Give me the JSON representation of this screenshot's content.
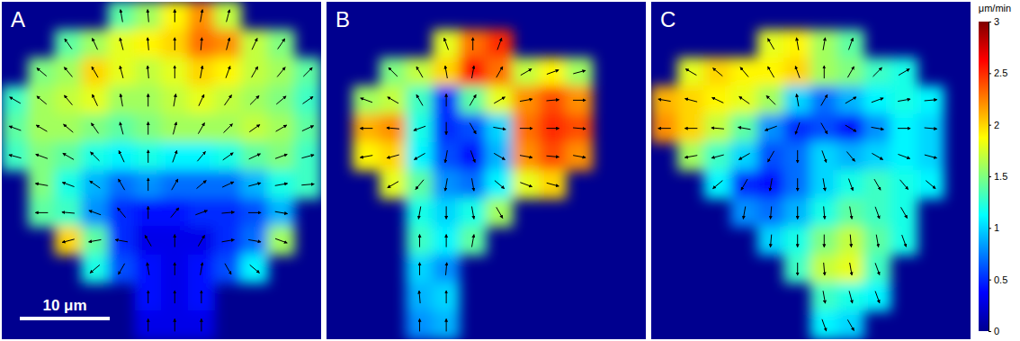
{
  "chart_data": [
    {
      "type": "heatmap",
      "title": "A",
      "xlim": [
        0,
        35.5
      ],
      "ylim": [
        0,
        37.5
      ],
      "tick_labels": false,
      "scale_bar": {
        "label": "10 μm",
        "length": 10
      },
      "values": [
        [
          null,
          null,
          null,
          null,
          1.4,
          1.6,
          1.9,
          2.2,
          1.7,
          null,
          null,
          null
        ],
        [
          null,
          null,
          1.4,
          1.6,
          1.8,
          1.9,
          2.0,
          2.3,
          2.2,
          1.7,
          1.5,
          null
        ],
        [
          null,
          1.5,
          1.6,
          2.0,
          1.8,
          1.7,
          1.8,
          2.0,
          1.9,
          1.7,
          1.6,
          1.4
        ],
        [
          1.3,
          1.6,
          1.7,
          1.8,
          1.6,
          1.6,
          1.7,
          1.8,
          1.7,
          1.6,
          1.5,
          1.3
        ],
        [
          1.4,
          1.6,
          1.6,
          1.5,
          1.4,
          1.5,
          1.6,
          1.6,
          1.6,
          1.7,
          1.6,
          1.4
        ],
        [
          1.3,
          1.5,
          1.4,
          1.2,
          1.1,
          1.2,
          1.1,
          1.1,
          1.2,
          1.4,
          1.5,
          1.3
        ],
        [
          null,
          1.5,
          1.2,
          0.9,
          0.7,
          0.8,
          0.7,
          0.7,
          0.7,
          0.9,
          1.2,
          1.3
        ],
        [
          null,
          1.4,
          1.3,
          0.8,
          0.5,
          0.4,
          0.4,
          0.5,
          0.5,
          0.6,
          0.9,
          null
        ],
        [
          null,
          null,
          2.0,
          1.4,
          0.5,
          0.3,
          0.3,
          0.3,
          0.5,
          0.7,
          1.6,
          null
        ],
        [
          null,
          null,
          null,
          1.2,
          0.6,
          0.4,
          0.3,
          0.4,
          0.6,
          1.1,
          null,
          null
        ],
        [
          null,
          null,
          null,
          null,
          null,
          0.4,
          0.3,
          0.4,
          null,
          null,
          null,
          null
        ],
        [
          null,
          null,
          null,
          null,
          null,
          0.3,
          0.3,
          0.3,
          null,
          null,
          null,
          null
        ]
      ],
      "directions": [
        [
          null,
          null,
          null,
          null,
          100,
          95,
          90,
          80,
          75,
          null,
          null,
          null
        ],
        [
          null,
          null,
          125,
          115,
          105,
          95,
          90,
          85,
          75,
          65,
          55,
          null
        ],
        [
          null,
          140,
          130,
          120,
          105,
          95,
          90,
          80,
          70,
          60,
          50,
          45
        ],
        [
          150,
          140,
          130,
          115,
          100,
          90,
          80,
          65,
          55,
          45,
          40,
          35
        ],
        [
          160,
          150,
          140,
          125,
          105,
          90,
          75,
          60,
          45,
          35,
          30,
          25
        ],
        [
          165,
          160,
          150,
          135,
          115,
          90,
          70,
          50,
          35,
          25,
          20,
          15
        ],
        [
          null,
          170,
          160,
          145,
          120,
          90,
          60,
          40,
          25,
          15,
          10,
          5
        ],
        [
          null,
          180,
          175,
          160,
          130,
          90,
          50,
          20,
          5,
          0,
          350,
          null
        ],
        [
          null,
          null,
          195,
          190,
          170,
          120,
          90,
          60,
          10,
          350,
          340,
          null
        ],
        [
          null,
          null,
          null,
          220,
          240,
          100,
          90,
          80,
          300,
          320,
          null,
          null
        ],
        [
          null,
          null,
          null,
          null,
          null,
          90,
          90,
          90,
          null,
          null,
          null,
          null
        ],
        [
          null,
          null,
          null,
          null,
          null,
          90,
          90,
          90,
          null,
          null,
          null,
          null
        ]
      ]
    },
    {
      "type": "heatmap",
      "title": "B",
      "xlim": [
        0,
        35.5
      ],
      "ylim": [
        0,
        37.5
      ],
      "tick_labels": false,
      "values": [
        [
          null,
          null,
          null,
          null,
          null,
          null,
          null,
          null,
          null,
          null,
          null,
          null
        ],
        [
          null,
          null,
          null,
          null,
          1.8,
          2.3,
          2.5,
          null,
          null,
          null,
          null,
          null
        ],
        [
          null,
          null,
          1.5,
          1.7,
          2.0,
          2.6,
          2.3,
          1.7,
          1.9,
          1.6,
          null,
          null
        ],
        [
          null,
          1.6,
          1.7,
          1.3,
          0.5,
          1.4,
          1.8,
          2.2,
          2.4,
          2.2,
          null,
          null
        ],
        [
          null,
          2.1,
          2.2,
          1.2,
          0.5,
          0.6,
          1.0,
          2.3,
          2.5,
          2.4,
          null,
          null
        ],
        [
          null,
          1.9,
          2.0,
          1.1,
          0.6,
          0.4,
          0.9,
          2.2,
          2.4,
          2.2,
          null,
          null
        ],
        [
          null,
          null,
          1.8,
          1.4,
          0.8,
          0.7,
          1.1,
          1.8,
          2.0,
          null,
          null,
          null
        ],
        [
          null,
          null,
          null,
          1.2,
          1.0,
          1.2,
          1.6,
          null,
          null,
          null,
          null,
          null
        ],
        [
          null,
          null,
          null,
          1.3,
          1.1,
          1.4,
          null,
          null,
          null,
          null,
          null,
          null
        ],
        [
          null,
          null,
          null,
          1.0,
          0.8,
          null,
          null,
          null,
          null,
          null,
          null,
          null
        ],
        [
          null,
          null,
          null,
          0.9,
          1.0,
          null,
          null,
          null,
          null,
          null,
          null,
          null
        ],
        [
          null,
          null,
          null,
          0.8,
          0.9,
          null,
          null,
          null,
          null,
          null,
          null,
          null
        ]
      ],
      "directions": [
        [
          null,
          null,
          null,
          null,
          null,
          null,
          null,
          null,
          null,
          null,
          null,
          null
        ],
        [
          null,
          null,
          null,
          null,
          110,
          90,
          70,
          null,
          null,
          null,
          null,
          null
        ],
        [
          null,
          null,
          135,
          120,
          100,
          80,
          60,
          30,
          20,
          15,
          null,
          null
        ],
        [
          null,
          160,
          150,
          120,
          90,
          60,
          30,
          10,
          5,
          0,
          null,
          null
        ],
        [
          null,
          180,
          175,
          200,
          270,
          300,
          350,
          0,
          0,
          355,
          null,
          null
        ],
        [
          null,
          190,
          195,
          210,
          260,
          290,
          330,
          350,
          355,
          350,
          null,
          null
        ],
        [
          null,
          null,
          210,
          230,
          260,
          280,
          320,
          340,
          345,
          null,
          null,
          null
        ],
        [
          null,
          null,
          null,
          260,
          270,
          280,
          300,
          null,
          null,
          null,
          null,
          null
        ],
        [
          null,
          null,
          null,
          90,
          90,
          80,
          null,
          null,
          null,
          null,
          null,
          null
        ],
        [
          null,
          null,
          null,
          90,
          85,
          null,
          null,
          null,
          null,
          null,
          null,
          null
        ],
        [
          null,
          null,
          null,
          95,
          90,
          null,
          null,
          null,
          null,
          null,
          null,
          null
        ],
        [
          null,
          null,
          null,
          90,
          90,
          null,
          null,
          null,
          null,
          null,
          null,
          null
        ]
      ]
    },
    {
      "type": "heatmap",
      "title": "C",
      "xlim": [
        0,
        35.5
      ],
      "ylim": [
        0,
        37.5
      ],
      "tick_labels": false,
      "colorbar": {
        "label": "μm/min",
        "range": [
          0,
          3
        ],
        "ticks": [
          0,
          0.5,
          1,
          1.5,
          2,
          2.5,
          3
        ]
      },
      "values": [
        [
          null,
          null,
          null,
          null,
          null,
          null,
          null,
          null,
          null,
          null,
          null,
          null
        ],
        [
          null,
          null,
          null,
          null,
          1.8,
          1.9,
          1.6,
          1.4,
          null,
          null,
          null,
          null
        ],
        [
          null,
          1.8,
          2.0,
          1.9,
          1.9,
          2.0,
          1.6,
          1.5,
          1.3,
          1.2,
          null,
          null
        ],
        [
          2.1,
          2.0,
          1.9,
          1.8,
          1.6,
          1.0,
          0.7,
          0.9,
          1.1,
          1.2,
          1.1,
          null
        ],
        [
          2.2,
          2.0,
          1.7,
          1.4,
          0.8,
          0.5,
          0.6,
          0.4,
          0.8,
          1.1,
          1.0,
          null
        ],
        [
          null,
          1.6,
          1.3,
          1.0,
          0.6,
          0.7,
          1.0,
          0.9,
          1.0,
          1.1,
          1.0,
          null
        ],
        [
          null,
          null,
          1.1,
          0.5,
          0.4,
          0.7,
          1.0,
          1.2,
          1.3,
          1.2,
          1.1,
          null
        ],
        [
          null,
          null,
          null,
          0.8,
          0.7,
          0.9,
          1.2,
          1.4,
          1.3,
          1.2,
          null,
          null
        ],
        [
          null,
          null,
          null,
          null,
          1.0,
          1.2,
          1.5,
          1.7,
          1.4,
          1.2,
          null,
          null
        ],
        [
          null,
          null,
          null,
          null,
          null,
          1.3,
          1.7,
          1.8,
          1.3,
          null,
          null,
          null
        ],
        [
          null,
          null,
          null,
          null,
          null,
          null,
          1.3,
          1.2,
          1.1,
          null,
          null,
          null
        ],
        [
          null,
          null,
          null,
          null,
          null,
          null,
          1.1,
          1.0,
          null,
          null,
          null,
          null
        ]
      ],
      "directions": [
        [
          null,
          null,
          null,
          null,
          null,
          null,
          null,
          null,
          null,
          null,
          null,
          null
        ],
        [
          null,
          null,
          null,
          null,
          120,
          100,
          80,
          70,
          null,
          null,
          null,
          null
        ],
        [
          null,
          150,
          140,
          130,
          120,
          110,
          90,
          60,
          45,
          30,
          null,
          null
        ],
        [
          170,
          165,
          155,
          145,
          135,
          100,
          60,
          30,
          20,
          10,
          5,
          null
        ],
        [
          180,
          180,
          175,
          170,
          200,
          250,
          300,
          330,
          350,
          0,
          355,
          null
        ],
        [
          null,
          190,
          195,
          210,
          240,
          270,
          290,
          310,
          330,
          340,
          345,
          null
        ],
        [
          null,
          null,
          220,
          240,
          260,
          270,
          280,
          290,
          300,
          310,
          320,
          null
        ],
        [
          null,
          null,
          null,
          260,
          265,
          270,
          275,
          280,
          290,
          300,
          null,
          null
        ],
        [
          null,
          null,
          null,
          null,
          265,
          270,
          270,
          275,
          280,
          290,
          null,
          null
        ],
        [
          null,
          null,
          null,
          null,
          null,
          270,
          275,
          280,
          290,
          null,
          null,
          null
        ],
        [
          null,
          null,
          null,
          null,
          null,
          null,
          280,
          285,
          290,
          null,
          null,
          null
        ],
        [
          null,
          null,
          null,
          null,
          null,
          null,
          290,
          300,
          null,
          null,
          null,
          null
        ]
      ]
    }
  ]
}
